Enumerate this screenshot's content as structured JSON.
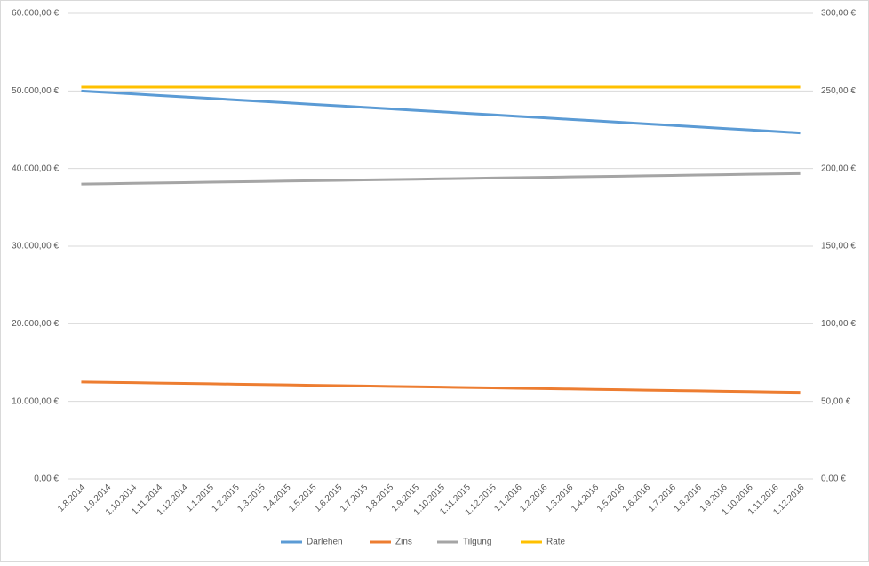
{
  "chart_data": {
    "type": "line",
    "categories": [
      "1.8.2014",
      "1.9.2014",
      "1.10.2014",
      "1.11.2014",
      "1.12.2014",
      "1.1.2015",
      "1.2.2015",
      "1.3.2015",
      "1.4.2015",
      "1.5.2015",
      "1.6.2015",
      "1.7.2015",
      "1.8.2015",
      "1.9.2015",
      "1.10.2015",
      "1.11.2015",
      "1.12.2015",
      "1.1.2016",
      "1.2.2016",
      "1.3.2016",
      "1.4.2016",
      "1.5.2016",
      "1.6.2016",
      "1.7.2016",
      "1.8.2016",
      "1.9.2016",
      "1.10.2016",
      "1.11.2016",
      "1.12.2016"
    ],
    "series": [
      {
        "name": "Darlehen",
        "color": "#5b9bd5",
        "axis": "y",
        "values": [
          50000,
          49810,
          49619.8,
          49429.3,
          49238.6,
          49047.6,
          48856.4,
          48665,
          48473.3,
          48281.4,
          48089.3,
          47896.9,
          47704.3,
          47511.4,
          47318.3,
          47124.9,
          46931.3,
          46737.5,
          46543.4,
          46349.1,
          46154.5,
          45959.7,
          45764.6,
          45569.3,
          45373.8,
          45178,
          44982,
          44785.7,
          44589.2
        ]
      },
      {
        "name": "Zins",
        "color": "#ed7d31",
        "axis": "y2",
        "values": [
          62.5,
          62.26,
          62.02,
          61.79,
          61.55,
          61.31,
          61.07,
          60.83,
          60.59,
          60.35,
          60.11,
          59.87,
          59.63,
          59.39,
          59.15,
          58.91,
          58.66,
          58.42,
          58.18,
          57.94,
          57.69,
          57.45,
          57.21,
          56.96,
          56.72,
          56.47,
          56.23,
          55.98,
          55.74
        ]
      },
      {
        "name": "Tilgung",
        "color": "#a5a5a5",
        "axis": "y2",
        "values": [
          190,
          190.24,
          190.48,
          190.71,
          190.95,
          191.19,
          191.43,
          191.67,
          191.91,
          192.15,
          192.39,
          192.63,
          192.87,
          193.11,
          193.35,
          193.59,
          193.84,
          194.08,
          194.32,
          194.56,
          194.81,
          195.05,
          195.29,
          195.54,
          195.78,
          196.03,
          196.27,
          196.52,
          196.76
        ]
      },
      {
        "name": "Rate",
        "color": "#ffc000",
        "axis": "y2",
        "values": [
          252.5,
          252.5,
          252.5,
          252.5,
          252.5,
          252.5,
          252.5,
          252.5,
          252.5,
          252.5,
          252.5,
          252.5,
          252.5,
          252.5,
          252.5,
          252.5,
          252.5,
          252.5,
          252.5,
          252.5,
          252.5,
          252.5,
          252.5,
          252.5,
          252.5,
          252.5,
          252.5,
          252.5,
          252.5
        ]
      }
    ],
    "ylim": [
      0,
      60000
    ],
    "yticks": [
      {
        "value": 0,
        "label": "0,00 €"
      },
      {
        "value": 10000,
        "label": "10.000,00 €"
      },
      {
        "value": 20000,
        "label": "20.000,00 €"
      },
      {
        "value": 30000,
        "label": "30.000,00 €"
      },
      {
        "value": 40000,
        "label": "40.000,00 €"
      },
      {
        "value": 50000,
        "label": "50.000,00 €"
      },
      {
        "value": 60000,
        "label": "60.000,00 €"
      }
    ],
    "y2lim": [
      0,
      300
    ],
    "y2ticks": [
      {
        "value": 0,
        "label": "0,00 €"
      },
      {
        "value": 50,
        "label": "50,00 €"
      },
      {
        "value": 100,
        "label": "100,00 €"
      },
      {
        "value": 150,
        "label": "150,00 €"
      },
      {
        "value": 200,
        "label": "200,00 €"
      },
      {
        "value": 250,
        "label": "250,00 €"
      },
      {
        "value": 300,
        "label": "300,00 €"
      }
    ],
    "grid": true,
    "legend": "bottom"
  }
}
